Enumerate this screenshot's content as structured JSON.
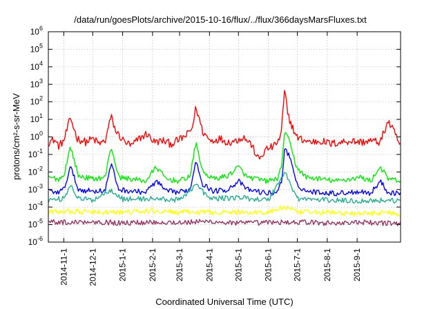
{
  "chart_data": {
    "type": "line",
    "title": "/data/run/goesPlots/archive/2015-10-16/flux/../flux/366daysMarsFluxes.txt",
    "xlabel": "Coordinated Universal Time (UTC)",
    "ylabel": "protons/cm²-s-sr-MeV",
    "yscale": "log",
    "ylim": [
      1e-06,
      1000000.0
    ],
    "xlim": [
      "2014-10-16",
      "2015-10-16"
    ],
    "yticks": [
      {
        "value": 1e-06,
        "exp": "-6"
      },
      {
        "value": 1e-05,
        "exp": "-5"
      },
      {
        "value": 0.0001,
        "exp": "-4"
      },
      {
        "value": 0.001,
        "exp": "-3"
      },
      {
        "value": 0.01,
        "exp": "-2"
      },
      {
        "value": 0.1,
        "exp": "-1"
      },
      {
        "value": 1.0,
        "exp": "0"
      },
      {
        "value": 10.0,
        "exp": "1"
      },
      {
        "value": 100.0,
        "exp": "2"
      },
      {
        "value": 1000.0,
        "exp": "3"
      },
      {
        "value": 10000.0,
        "exp": "4"
      },
      {
        "value": 100000.0,
        "exp": "5"
      },
      {
        "value": 1000000.0,
        "exp": "6"
      }
    ],
    "ytick_base": "10",
    "xticks": [
      "2014-11-1",
      "2014-12-1",
      "2015-1-1",
      "2015-2-1",
      "2015-3-1",
      "2015-4-1",
      "2015-5-1",
      "2015-6-1",
      "2015-7-1",
      "2015-8-1",
      "2015-9-1"
    ],
    "grid": true,
    "legend": "none",
    "series": [
      {
        "color": "#ff0000",
        "x": [
          "2014-10-16",
          "2014-10-22",
          "2014-10-27",
          "2014-11-01",
          "2014-11-08",
          "2014-11-15",
          "2014-11-24",
          "2014-12-01",
          "2014-12-08",
          "2014-12-14",
          "2014-12-20",
          "2014-12-25",
          "2015-01-02",
          "2015-01-10",
          "2015-01-18",
          "2015-01-26",
          "2015-02-03",
          "2015-02-12",
          "2015-02-20",
          "2015-03-01",
          "2015-03-08",
          "2015-03-14",
          "2015-03-18",
          "2015-03-25",
          "2015-04-02",
          "2015-04-12",
          "2015-04-20",
          "2015-04-28",
          "2015-05-06",
          "2015-05-14",
          "2015-05-22",
          "2015-05-30",
          "2015-06-07",
          "2015-06-14",
          "2015-06-18",
          "2015-06-21",
          "2015-06-25",
          "2015-06-30",
          "2015-07-06",
          "2015-07-15",
          "2015-07-25",
          "2015-08-05",
          "2015-08-15",
          "2015-08-25",
          "2015-09-05",
          "2015-09-15",
          "2015-09-25",
          "2015-10-03",
          "2015-10-09",
          "2015-10-16"
        ],
        "y": [
          0.5,
          0.7,
          0.3,
          0.6,
          12,
          0.8,
          0.5,
          0.8,
          0.4,
          0.6,
          15,
          2,
          0.6,
          0.3,
          0.8,
          1.5,
          0.5,
          0.6,
          0.4,
          0.7,
          1.2,
          3,
          50,
          2,
          0.6,
          0.8,
          0.5,
          0.6,
          1,
          0.4,
          0.05,
          0.2,
          0.3,
          1,
          500,
          20,
          5,
          1,
          0.7,
          0.5,
          0.6,
          0.4,
          0.5,
          0.6,
          0.5,
          0.6,
          0.5,
          8,
          2,
          0.3
        ]
      },
      {
        "color": "#00ee00",
        "x": [
          "2014-10-16",
          "2014-10-27",
          "2014-11-01",
          "2014-11-08",
          "2014-11-16",
          "2014-12-01",
          "2014-12-14",
          "2014-12-20",
          "2014-12-28",
          "2015-01-10",
          "2015-01-25",
          "2015-02-05",
          "2015-02-15",
          "2015-03-01",
          "2015-03-12",
          "2015-03-18",
          "2015-03-25",
          "2015-04-05",
          "2015-04-20",
          "2015-05-01",
          "2015-05-10",
          "2015-05-20",
          "2015-05-30",
          "2015-06-10",
          "2015-06-15",
          "2015-06-18",
          "2015-06-24",
          "2015-06-30",
          "2015-07-10",
          "2015-07-25",
          "2015-08-10",
          "2015-08-25",
          "2015-09-05",
          "2015-09-15",
          "2015-09-25",
          "2015-10-03",
          "2015-10-16"
        ],
        "y": [
          0.005,
          0.004,
          0.006,
          0.3,
          0.006,
          0.004,
          0.005,
          0.3,
          0.005,
          0.004,
          0.003,
          0.02,
          0.004,
          0.003,
          0.006,
          0.5,
          0.01,
          0.004,
          0.006,
          0.02,
          0.005,
          0.004,
          0.003,
          0.004,
          0.02,
          3,
          0.3,
          0.02,
          0.005,
          0.004,
          0.003,
          0.004,
          0.005,
          0.003,
          0.02,
          0.004,
          0.003
        ]
      },
      {
        "color": "#0000ff",
        "x": [
          "2014-10-16",
          "2014-10-27",
          "2014-11-01",
          "2014-11-08",
          "2014-11-16",
          "2014-12-01",
          "2014-12-14",
          "2014-12-20",
          "2014-12-28",
          "2015-01-10",
          "2015-01-25",
          "2015-02-05",
          "2015-02-15",
          "2015-03-01",
          "2015-03-12",
          "2015-03-18",
          "2015-03-25",
          "2015-04-05",
          "2015-04-20",
          "2015-05-01",
          "2015-05-10",
          "2015-05-20",
          "2015-05-30",
          "2015-06-10",
          "2015-06-15",
          "2015-06-18",
          "2015-06-24",
          "2015-06-30",
          "2015-07-10",
          "2015-07-25",
          "2015-08-10",
          "2015-08-25",
          "2015-09-05",
          "2015-09-15",
          "2015-09-25",
          "2015-10-03",
          "2015-10-16"
        ],
        "y": [
          0.0008,
          0.0007,
          0.001,
          0.02,
          0.001,
          0.0008,
          0.0009,
          0.03,
          0.001,
          0.0008,
          0.0007,
          0.003,
          0.0008,
          0.0007,
          0.001,
          0.05,
          0.002,
          0.0008,
          0.001,
          0.003,
          0.001,
          0.0008,
          0.0006,
          0.0007,
          0.003,
          0.3,
          0.05,
          0.002,
          0.0008,
          0.0007,
          0.0006,
          0.0007,
          0.0008,
          0.0006,
          0.003,
          0.0007,
          0.0006
        ]
      },
      {
        "color": "#20b090",
        "x": [
          "2014-10-16",
          "2014-11-01",
          "2014-11-08",
          "2014-11-16",
          "2014-12-01",
          "2014-12-20",
          "2015-01-01",
          "2015-02-01",
          "2015-03-01",
          "2015-03-18",
          "2015-04-01",
          "2015-05-01",
          "2015-06-01",
          "2015-06-18",
          "2015-06-24",
          "2015-07-01",
          "2015-08-01",
          "2015-09-01",
          "2015-10-01",
          "2015-10-16"
        ],
        "y": [
          0.00025,
          0.0003,
          0.002,
          0.0003,
          0.00025,
          0.001,
          0.00028,
          0.0003,
          0.00025,
          0.002,
          0.0003,
          0.00035,
          0.00025,
          0.01,
          0.002,
          0.0003,
          0.00025,
          0.00022,
          0.00025,
          0.00022
        ]
      },
      {
        "color": "#ffff00",
        "x": [
          "2014-10-16",
          "2014-11-01",
          "2014-12-01",
          "2015-01-01",
          "2015-02-01",
          "2015-03-01",
          "2015-04-01",
          "2015-05-01",
          "2015-06-01",
          "2015-06-18",
          "2015-07-01",
          "2015-08-01",
          "2015-09-01",
          "2015-10-01",
          "2015-10-16"
        ],
        "y": [
          5e-05,
          6e-05,
          5e-05,
          5e-05,
          6e-05,
          5e-05,
          5e-05,
          5e-05,
          5e-05,
          0.0001,
          5e-05,
          5e-05,
          4e-05,
          5e-05,
          4e-05
        ]
      },
      {
        "color": "#993366",
        "x": [
          "2014-10-16",
          "2014-11-01",
          "2014-12-01",
          "2015-01-01",
          "2015-02-01",
          "2015-03-01",
          "2015-04-01",
          "2015-05-01",
          "2015-06-01",
          "2015-07-01",
          "2015-08-01",
          "2015-09-01",
          "2015-10-01",
          "2015-10-16"
        ],
        "y": [
          1.5e-05,
          1.3e-05,
          1.5e-05,
          1.2e-05,
          1.4e-05,
          1.3e-05,
          1.5e-05,
          1.2e-05,
          1.3e-05,
          1.4e-05,
          1.2e-05,
          1.3e-05,
          1.2e-05,
          1.2e-05
        ]
      }
    ]
  }
}
